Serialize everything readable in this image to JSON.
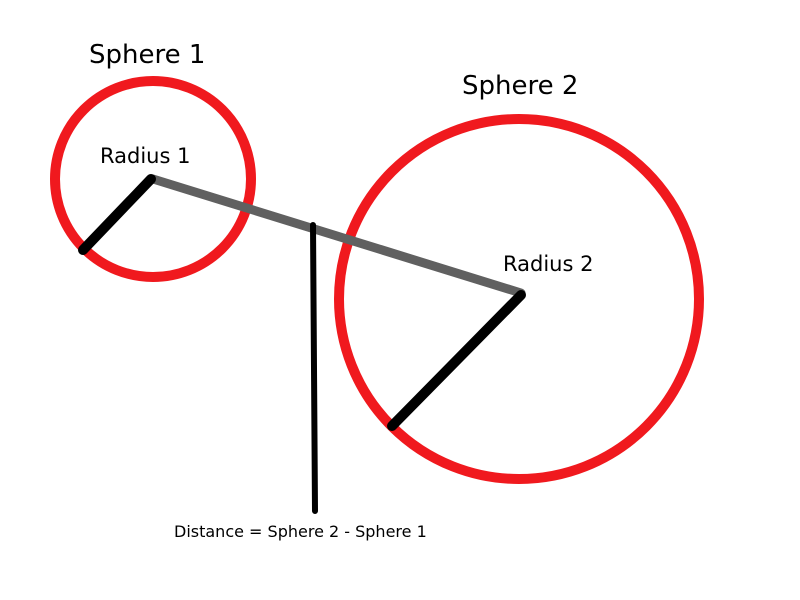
{
  "sphere1": {
    "title": "Sphere 1",
    "radius_label": "Radius 1"
  },
  "sphere2": {
    "title": "Sphere 2",
    "radius_label": "Radius 2"
  },
  "caption": "Distance = Sphere 2 - Sphere 1",
  "colors": {
    "circle": "#f0191e",
    "radius_line": "#000000",
    "center_line": "#606060",
    "background": "#ffffff"
  }
}
